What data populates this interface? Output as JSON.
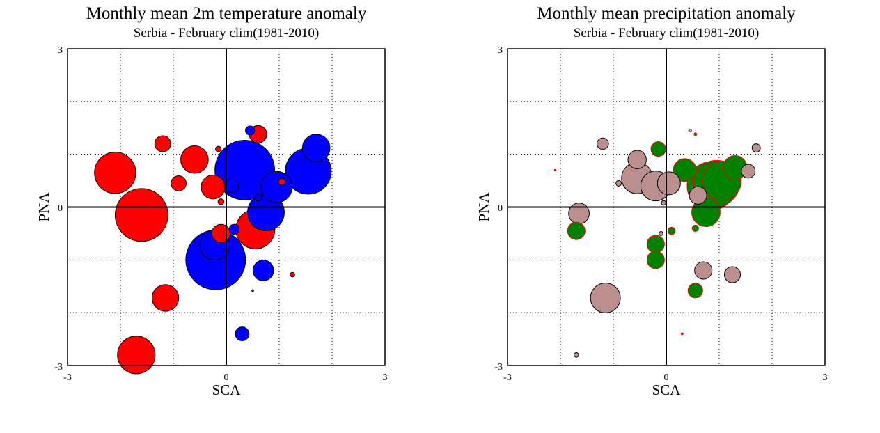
{
  "colors": {
    "positive_temp": "#ff0000",
    "negative_temp": "#0000ff",
    "wet": "#008000",
    "dry": "#bc8f8f",
    "wet_edge": "#ff0000",
    "dry_edge": "#000000"
  },
  "chart_data": [
    {
      "type": "scatter",
      "title": "Monthly mean 2m temperature anomaly",
      "subtitle": "Serbia - February  clim(1981-2010)",
      "xlabel": "SCA",
      "ylabel": "PNA",
      "xlim": [
        -3,
        3
      ],
      "ylim": [
        -3,
        3
      ],
      "xtick_labels": [
        "-3",
        "0",
        "3"
      ],
      "ytick_labels": [
        "-3",
        "0",
        "3"
      ],
      "grid": true,
      "series": [
        {
          "color": "#ff0000",
          "points": [
            {
              "x": -2.1,
              "y": 0.65,
              "size": 0.9
            },
            {
              "x": -1.6,
              "y": -0.15,
              "size": 1.15
            },
            {
              "x": -1.7,
              "y": -2.8,
              "size": 0.82
            },
            {
              "x": -1.15,
              "y": -1.72,
              "size": 0.58
            },
            {
              "x": -1.2,
              "y": 1.2,
              "size": 0.35
            },
            {
              "x": -0.9,
              "y": 0.45,
              "size": 0.33
            },
            {
              "x": -0.6,
              "y": 0.9,
              "size": 0.6
            },
            {
              "x": -0.25,
              "y": 0.38,
              "size": 0.52
            },
            {
              "x": -0.15,
              "y": 1.1,
              "size": 0.12
            },
            {
              "x": -0.1,
              "y": 0.1,
              "size": 0.13
            },
            {
              "x": -0.1,
              "y": -0.5,
              "size": 0.4
            },
            {
              "x": 0.55,
              "y": -0.42,
              "size": 0.85
            },
            {
              "x": 0.6,
              "y": 1.38,
              "size": 0.38
            },
            {
              "x": 1.05,
              "y": 0.48,
              "size": 0.15
            },
            {
              "x": 1.25,
              "y": -1.28,
              "size": 0.1
            },
            {
              "x": 0.5,
              "y": -1.58,
              "size": 0.04
            }
          ]
        },
        {
          "color": "#0000ff",
          "points": [
            {
              "x": -0.2,
              "y": -1.0,
              "size": 1.3
            },
            {
              "x": -0.22,
              "y": -0.72,
              "size": 0.65
            },
            {
              "x": 0.35,
              "y": 0.7,
              "size": 1.3
            },
            {
              "x": 0.1,
              "y": 0.4,
              "size": 0.3
            },
            {
              "x": 0.75,
              "y": -0.1,
              "size": 0.8
            },
            {
              "x": 0.95,
              "y": 0.38,
              "size": 0.68
            },
            {
              "x": 1.55,
              "y": 0.68,
              "size": 1.0
            },
            {
              "x": 1.7,
              "y": 1.12,
              "size": 0.6
            },
            {
              "x": 0.7,
              "y": -1.2,
              "size": 0.45
            },
            {
              "x": 0.3,
              "y": -2.4,
              "size": 0.3
            },
            {
              "x": 0.45,
              "y": 1.45,
              "size": 0.2
            },
            {
              "x": 0.15,
              "y": -0.42,
              "size": 0.22
            },
            {
              "x": 0.6,
              "y": 0.18,
              "size": 0.15
            }
          ]
        }
      ]
    },
    {
      "type": "scatter",
      "title": "Monthly mean precipitation anomaly",
      "subtitle": "Serbia - February  clim(1981-2010)",
      "xlabel": "SCA",
      "ylabel": "PNA",
      "xlim": [
        -3,
        3
      ],
      "ylim": [
        -3,
        3
      ],
      "xtick_labels": [
        "-3",
        "0",
        "3"
      ],
      "ytick_labels": [
        "-3",
        "0",
        "3"
      ],
      "grid": true,
      "series": [
        {
          "color": "#008000",
          "edge": "#ff0000",
          "points": [
            {
              "x": -1.7,
              "y": -0.45,
              "size": 0.38
            },
            {
              "x": -0.2,
              "y": -0.7,
              "size": 0.38
            },
            {
              "x": -0.2,
              "y": -1.0,
              "size": 0.38
            },
            {
              "x": -0.15,
              "y": 1.1,
              "size": 0.32
            },
            {
              "x": 0.1,
              "y": -0.45,
              "size": 0.16
            },
            {
              "x": 0.35,
              "y": 0.7,
              "size": 0.5
            },
            {
              "x": 0.55,
              "y": -1.58,
              "size": 0.32
            },
            {
              "x": 0.55,
              "y": -0.4,
              "size": 0.14
            },
            {
              "x": 0.75,
              "y": -0.1,
              "size": 0.62
            },
            {
              "x": 0.85,
              "y": 0.4,
              "size": 1.05
            },
            {
              "x": 0.95,
              "y": 0.45,
              "size": 1.0
            },
            {
              "x": 1.05,
              "y": 0.5,
              "size": 0.85
            },
            {
              "x": 1.3,
              "y": 0.75,
              "size": 0.52
            },
            {
              "x": 0.55,
              "y": 1.38,
              "size": 0.06
            },
            {
              "x": -2.1,
              "y": 0.7,
              "size": 0.03
            },
            {
              "x": 0.3,
              "y": -2.4,
              "size": 0.04
            }
          ]
        },
        {
          "color": "#bc8f8f",
          "edge": "#000000",
          "points": [
            {
              "x": -1.65,
              "y": -0.12,
              "size": 0.45
            },
            {
              "x": -1.15,
              "y": -1.72,
              "size": 0.65
            },
            {
              "x": -1.2,
              "y": 1.2,
              "size": 0.25
            },
            {
              "x": -0.9,
              "y": 0.45,
              "size": 0.12
            },
            {
              "x": -0.55,
              "y": 0.9,
              "size": 0.4
            },
            {
              "x": -0.55,
              "y": 0.55,
              "size": 0.68
            },
            {
              "x": -0.2,
              "y": 0.4,
              "size": 0.65
            },
            {
              "x": 0.05,
              "y": 0.45,
              "size": 0.5
            },
            {
              "x": -0.05,
              "y": 0.08,
              "size": 0.1
            },
            {
              "x": -0.1,
              "y": -0.5,
              "size": 0.09
            },
            {
              "x": 0.6,
              "y": 0.22,
              "size": 0.38
            },
            {
              "x": 0.7,
              "y": -1.2,
              "size": 0.38
            },
            {
              "x": 1.25,
              "y": -1.28,
              "size": 0.35
            },
            {
              "x": 1.55,
              "y": 0.68,
              "size": 0.3
            },
            {
              "x": 1.7,
              "y": 1.12,
              "size": 0.18
            },
            {
              "x": 0.45,
              "y": 1.45,
              "size": 0.06
            },
            {
              "x": -1.7,
              "y": -2.8,
              "size": 0.1
            }
          ]
        }
      ]
    }
  ]
}
